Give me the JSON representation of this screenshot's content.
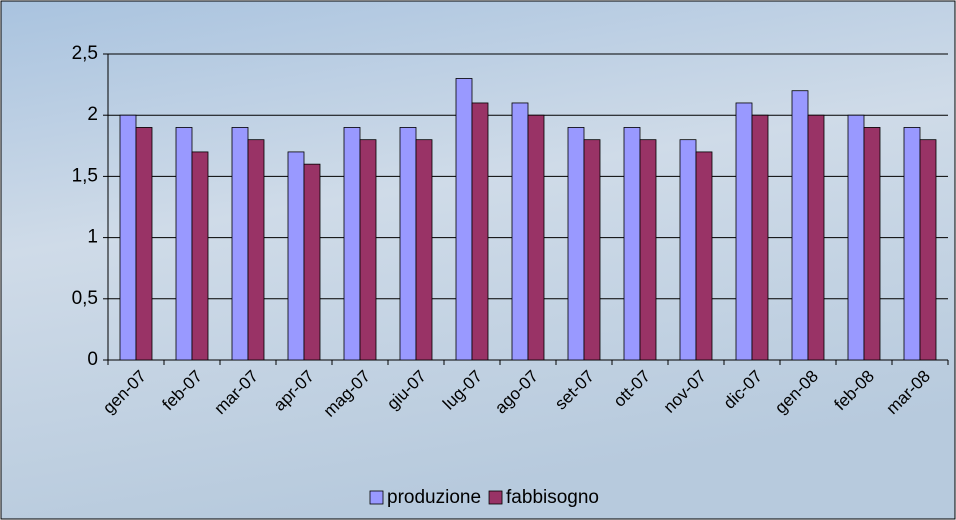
{
  "chart_data": {
    "type": "bar",
    "categories": [
      "gen-07",
      "feb-07",
      "mar-07",
      "apr-07",
      "mag-07",
      "giu-07",
      "lug-07",
      "ago-07",
      "set-07",
      "ott-07",
      "nov-07",
      "dic-07",
      "gen-08",
      "feb-08",
      "mar-08"
    ],
    "series": [
      {
        "name": "produzione",
        "color": "#9999ff",
        "values": [
          2.0,
          1.9,
          1.9,
          1.7,
          1.9,
          1.9,
          2.3,
          2.1,
          1.9,
          1.9,
          1.8,
          2.1,
          2.2,
          2.0,
          1.9
        ]
      },
      {
        "name": "fabbisogno",
        "color": "#993366",
        "values": [
          1.9,
          1.7,
          1.8,
          1.6,
          1.8,
          1.8,
          2.1,
          2.0,
          1.8,
          1.8,
          1.7,
          2.0,
          2.0,
          1.9,
          1.8
        ]
      }
    ],
    "ylim": [
      0,
      2.5
    ],
    "yticks": [
      0,
      {
        "value": 0.5,
        "label": "0,5"
      },
      1,
      {
        "value": 1.5,
        "label": "1,5"
      },
      2,
      {
        "value": 2.5,
        "label": "2,5"
      }
    ],
    "grid": true,
    "legend": "bottom"
  }
}
